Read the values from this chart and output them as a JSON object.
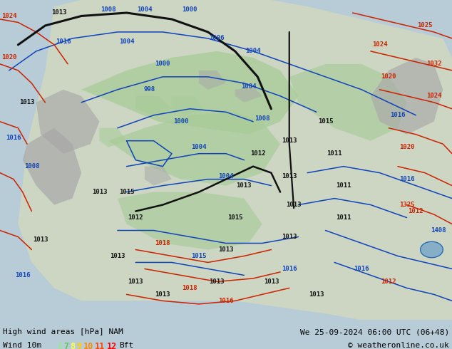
{
  "title_left": "High wind areas [hPa] NAM",
  "title_right": "We 25-09-2024 06:00 UTC (06+48)",
  "subtitle_left": "Wind 10m",
  "subtitle_right": "© weatheronline.co.uk",
  "legend_numbers": [
    "6",
    "7",
    "8",
    "9",
    "10",
    "11",
    "12"
  ],
  "legend_colors": [
    "#99e699",
    "#55cc55",
    "#ffff44",
    "#ffcc00",
    "#ff8800",
    "#ff4400",
    "#ff0000"
  ],
  "legend_suffix": "Bft",
  "sea_color": "#b8ccd8",
  "land_color": "#d0d8c0",
  "green_color": "#a8cc98",
  "gray_color": "#a8a8a8",
  "bottom_bar_color": "#c8d4e0",
  "figsize": [
    6.34,
    4.9
  ],
  "dpi": 100,
  "text_fontsize": 8.0,
  "legend_fontsize": 8.5
}
